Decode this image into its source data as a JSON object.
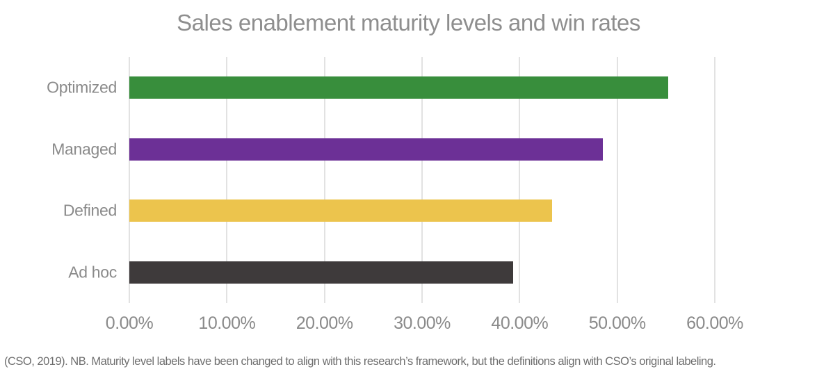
{
  "chart_data": {
    "type": "bar",
    "orientation": "horizontal",
    "title": "Sales enablement maturity levels and win rates",
    "categories": [
      "Optimized",
      "Managed",
      "Defined",
      "Ad hoc"
    ],
    "values": [
      55.2,
      48.5,
      43.3,
      39.3
    ],
    "value_unit": "%",
    "xlim": [
      0,
      60
    ],
    "x_tick_labels": [
      "0.00%",
      "10.00%",
      "20.00%",
      "30.00%",
      "40.00%",
      "50.00%",
      "60.00%"
    ],
    "bar_colors": [
      "#388E3C",
      "#6C3096",
      "#ECC44D",
      "#3E3A3B"
    ],
    "grid": "vertical-gridlines-on",
    "legend": "none",
    "xlabel": "",
    "ylabel": "",
    "title_color": "#8E8E8E",
    "label_color": "#8A8A8A",
    "gridline_color": "#E2E2E2",
    "footnote": "(CSO, 2019). NB. Maturity level labels have been changed to align with this research’s framework, but the definitions align with CSO’s original labeling."
  }
}
